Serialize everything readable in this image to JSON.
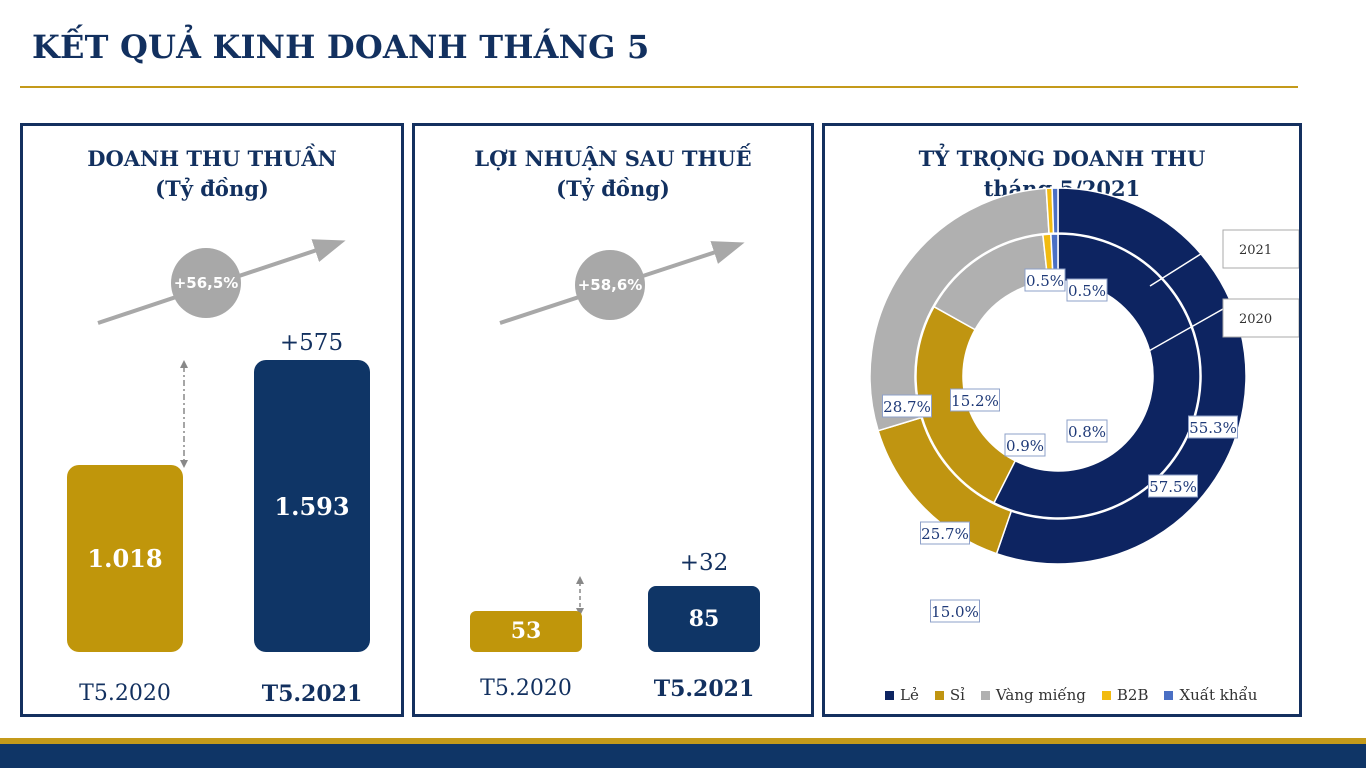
{
  "title": "KẾT QUẢ KINH DOANH THÁNG 5",
  "revenue": {
    "heading_line1": "DOANH THU THUẦN",
    "heading_line2": "(Tỷ đồng)",
    "growth": "+56,5%",
    "diff": "+575",
    "bar_2020": {
      "label": "T5.2020",
      "value": "1.018",
      "amount": 1018
    },
    "bar_2021": {
      "label": "T5.2021",
      "value": "1.593",
      "amount": 1593
    }
  },
  "profit": {
    "heading_line1": "LỢI NHUẬN SAU THUẾ",
    "heading_line2": "(Tỷ đồng)",
    "growth": "+58,6%",
    "diff": "+32",
    "bar_2020": {
      "label": "T5.2020",
      "value": "53",
      "amount": 53
    },
    "bar_2021": {
      "label": "T5.2021",
      "value": "85",
      "amount": 85
    }
  },
  "share": {
    "heading_line1": "TỶ TRỌNG DOANH THU",
    "heading_line2": "tháng 5/2021",
    "callout_outer": "2021",
    "callout_inner": "2020"
  },
  "chart_data": {
    "type": "pie",
    "categories": [
      "Lẻ",
      "Sỉ",
      "Vàng miếng",
      "B2B",
      "Xuất khẩu"
    ],
    "series": [
      {
        "name": "2021",
        "values": [
          55.3,
          15.0,
          28.7,
          0.5,
          0.5
        ],
        "labels": [
          "55.3%",
          "15.0%",
          "28.7%",
          "0.5%",
          "0.5%"
        ]
      },
      {
        "name": "2020",
        "values": [
          57.5,
          25.7,
          15.2,
          0.9,
          0.8
        ],
        "labels": [
          "57.5%",
          "25.7%",
          "15.2%",
          "0.9%",
          "0.8%"
        ]
      }
    ],
    "colors": [
      "#0d2461",
      "#c09511",
      "#b0b0b0",
      "#f2bb10",
      "#4a6fc4"
    ],
    "legend_position": "bottom"
  },
  "colors": {
    "navy": "#0f3566",
    "gold": "#c0960b",
    "grey": "#a8a8a8"
  }
}
